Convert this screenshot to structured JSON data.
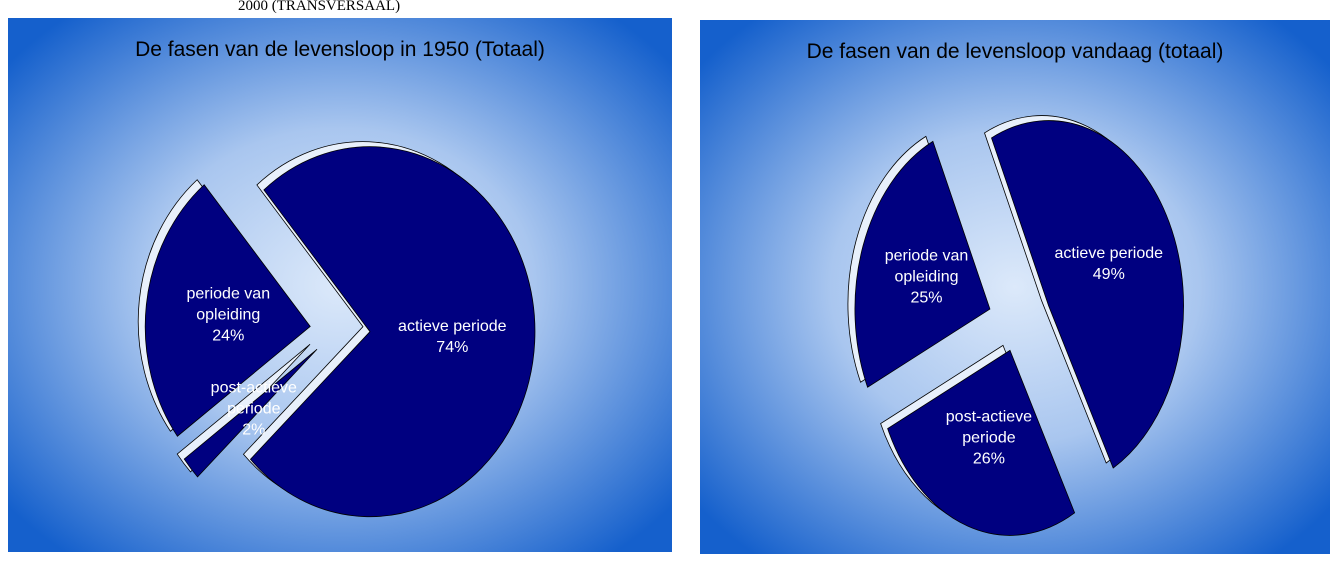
{
  "caption": "2000 (TRANSVERSAAL)",
  "chart_data": [
    {
      "type": "pie",
      "title": "De fasen van de levensloop in 1950 (Totaal)",
      "categories": [
        "actieve periode",
        "post-actieve periode",
        "periode van opleiding"
      ],
      "values": [
        74,
        2,
        24
      ],
      "value_labels": [
        "74%",
        "2%",
        "24%"
      ],
      "color": "#000080"
    },
    {
      "type": "pie",
      "title": "De fasen van de levensloop vandaag (totaal)",
      "categories": [
        "actieve periode",
        "post-actieve periode",
        "periode van opleiding"
      ],
      "values": [
        49,
        26,
        25
      ],
      "value_labels": [
        "49%",
        "26%",
        "25%"
      ],
      "color": "#000080"
    }
  ]
}
